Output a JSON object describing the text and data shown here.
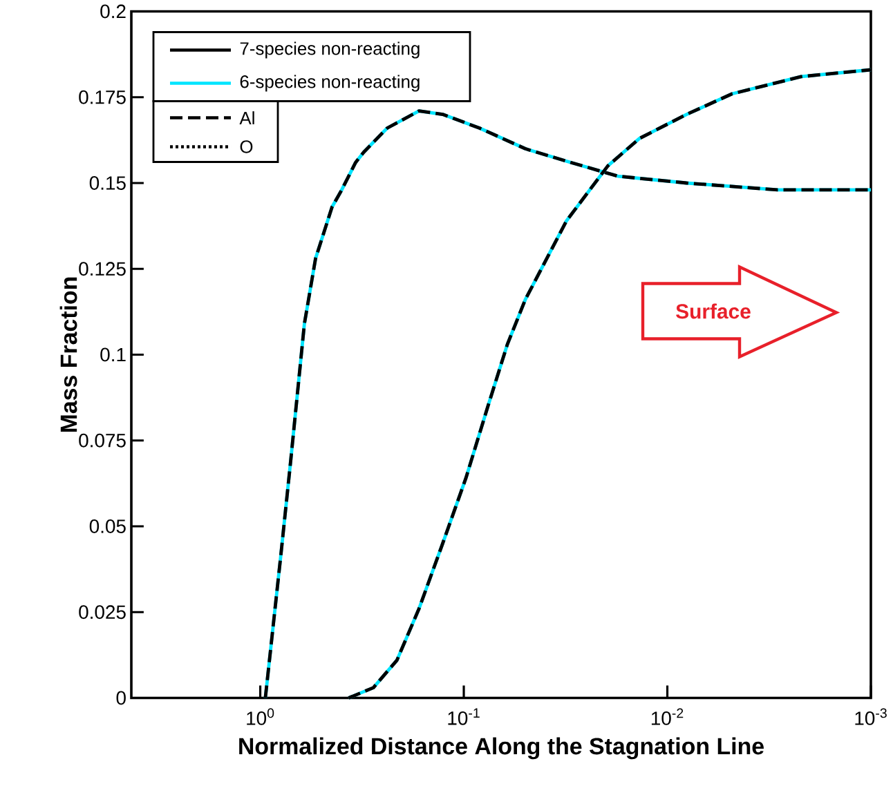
{
  "chart_data": {
    "type": "line",
    "xlabel": "Normalized Distance Along the Stagnation Line",
    "ylabel": "Mass Fraction",
    "log": "x",
    "xlim": [
      4.3,
      0.001
    ],
    "xticks": [
      {
        "value": 1,
        "label": "10$^{0}$"
      },
      {
        "value": 0.1,
        "label": "10$^{-1}$"
      },
      {
        "value": 0.01,
        "label": "10$^{-2}$"
      },
      {
        "value": 0.001,
        "label": "10$^{-3}$"
      }
    ],
    "ylim": [
      0,
      0.2
    ],
    "yticks": [
      0,
      0.025,
      0.05,
      0.075,
      0.1,
      0.125,
      0.15,
      0.175,
      0.2
    ],
    "legend": "top left",
    "grid": false,
    "marker": "none",
    "series": [
      {
        "name": "6-species non-reacting",
        "color": "#00e5ff",
        "line_style": "solid",
        "x": [
          0.944,
          0.791,
          0.709,
          0.656,
          0.607,
          0.535,
          0.444,
          0.398,
          0.34,
          0.31,
          0.238,
          0.166,
          0.127,
          0.0836,
          0.0499,
          0.0298,
          0.0175,
          0.00804,
          0.00287,
          0.001
        ],
        "values": [
          0,
          0.042,
          0.069,
          0.089,
          0.109,
          0.128,
          0.143,
          0.148,
          0.156,
          0.159,
          0.166,
          0.171,
          0.17,
          0.166,
          0.16,
          0.156,
          0.152,
          0.15,
          0.148,
          0.148
        ]
      },
      {
        "name": "7-species non-reacting",
        "color": "#000000",
        "line_style": "dashed",
        "x": [
          0.944,
          0.791,
          0.709,
          0.656,
          0.607,
          0.535,
          0.444,
          0.398,
          0.34,
          0.31,
          0.238,
          0.166,
          0.127,
          0.0836,
          0.0499,
          0.0298,
          0.0175,
          0.00804,
          0.00287,
          0.001
        ],
        "values": [
          0,
          0.042,
          0.069,
          0.089,
          0.109,
          0.128,
          0.143,
          0.148,
          0.156,
          0.159,
          0.166,
          0.171,
          0.17,
          0.166,
          0.16,
          0.156,
          0.152,
          0.15,
          0.148,
          0.148
        ]
      },
      {
        "color": "#00e5ff",
        "line_style": "solid",
        "x": [
          0.368,
          0.278,
          0.213,
          0.166,
          0.127,
          0.0977,
          0.0761,
          0.0611,
          0.0499,
          0.0313,
          0.0196,
          0.0137,
          0.00804,
          0.0048,
          0.0022,
          0.001
        ],
        "values": [
          0,
          0.003,
          0.011,
          0.026,
          0.045,
          0.064,
          0.085,
          0.103,
          0.116,
          0.139,
          0.155,
          0.163,
          0.17,
          0.176,
          0.181,
          0.183
        ]
      },
      {
        "color": "#000000",
        "line_style": "dashed",
        "x": [
          0.368,
          0.278,
          0.213,
          0.166,
          0.127,
          0.0977,
          0.0761,
          0.0611,
          0.0499,
          0.0313,
          0.0196,
          0.0137,
          0.00804,
          0.0048,
          0.0022,
          0.001
        ],
        "values": [
          0,
          0.003,
          0.011,
          0.026,
          0.045,
          0.064,
          0.085,
          0.103,
          0.116,
          0.139,
          0.155,
          0.163,
          0.17,
          0.176,
          0.181,
          0.183
        ]
      }
    ],
    "annotations": [
      "Al",
      "O",
      "Surface"
    ]
  }
}
